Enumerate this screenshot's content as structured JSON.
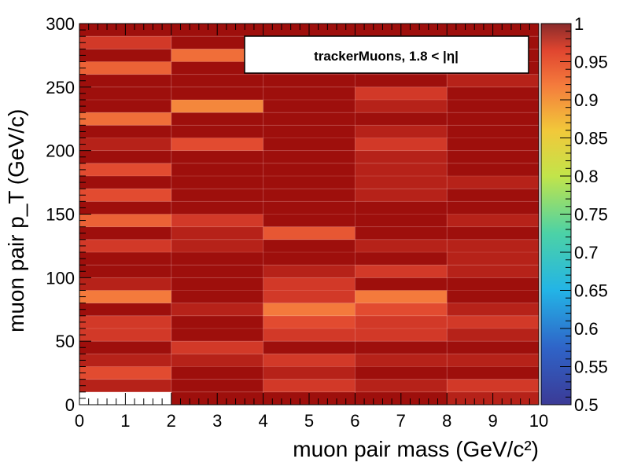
{
  "chart_data": {
    "type": "heatmap",
    "title": "",
    "legend_text": "trackerMuons, 1.8 < |η|",
    "xlabel": "muon pair mass (GeV/c²)",
    "ylabel": "muon pair p_T (GeV/c)",
    "xlim": [
      0,
      10
    ],
    "ylim": [
      0,
      300
    ],
    "zlim": [
      0.5,
      1
    ],
    "x_edges": [
      0,
      2,
      4,
      6,
      8,
      10
    ],
    "y_edges": [
      0,
      10,
      20,
      30,
      40,
      50,
      60,
      70,
      80,
      90,
      100,
      110,
      120,
      130,
      140,
      150,
      160,
      170,
      180,
      190,
      200,
      210,
      220,
      230,
      240,
      250,
      260,
      270,
      280,
      290,
      300
    ],
    "x_ticks": [
      "0",
      "1",
      "2",
      "3",
      "4",
      "5",
      "6",
      "7",
      "8",
      "9",
      "10"
    ],
    "y_ticks": [
      "0",
      "50",
      "100",
      "150",
      "200",
      "250",
      "300"
    ],
    "z_ticks": [
      "0.5",
      "0.55",
      "0.6",
      "0.65",
      "0.7",
      "0.75",
      "0.8",
      "0.85",
      "0.9",
      "0.95",
      "1"
    ],
    "values": [
      [
        null,
        0.99,
        0.99,
        0.99,
        0.98
      ],
      [
        0.98,
        0.99,
        0.97,
        0.98,
        0.97
      ],
      [
        0.96,
        0.99,
        0.98,
        0.99,
        0.99
      ],
      [
        0.98,
        0.98,
        0.97,
        0.98,
        0.98
      ],
      [
        0.99,
        0.97,
        0.99,
        0.99,
        0.99
      ],
      [
        0.97,
        0.99,
        0.97,
        0.97,
        0.98
      ],
      [
        0.97,
        0.99,
        0.96,
        0.97,
        0.97
      ],
      [
        0.99,
        0.98,
        0.92,
        0.96,
        0.98
      ],
      [
        0.92,
        0.99,
        0.97,
        0.92,
        0.99
      ],
      [
        0.98,
        0.99,
        0.97,
        0.99,
        0.99
      ],
      [
        0.99,
        0.99,
        0.98,
        0.97,
        0.98
      ],
      [
        0.99,
        0.99,
        0.99,
        0.99,
        0.98
      ],
      [
        0.97,
        0.98,
        0.99,
        0.98,
        0.98
      ],
      [
        0.99,
        0.98,
        0.95,
        0.99,
        0.99
      ],
      [
        0.94,
        0.97,
        0.99,
        0.99,
        0.98
      ],
      [
        0.99,
        0.99,
        0.99,
        0.99,
        0.99
      ],
      [
        0.96,
        0.99,
        0.99,
        0.98,
        0.99
      ],
      [
        0.99,
        0.99,
        0.99,
        0.98,
        0.98
      ],
      [
        0.96,
        0.99,
        0.99,
        0.98,
        0.99
      ],
      [
        0.99,
        0.99,
        0.99,
        0.98,
        0.99
      ],
      [
        0.98,
        0.96,
        0.99,
        0.97,
        0.99
      ],
      [
        0.99,
        0.99,
        0.99,
        0.98,
        0.99
      ],
      [
        0.93,
        0.99,
        0.99,
        0.99,
        0.99
      ],
      [
        0.99,
        0.91,
        0.99,
        0.98,
        0.99
      ],
      [
        0.99,
        0.99,
        0.99,
        0.97,
        0.99
      ],
      [
        0.99,
        0.99,
        0.99,
        0.99,
        0.98
      ],
      [
        0.94,
        0.99,
        0.99,
        0.99,
        0.99
      ],
      [
        0.99,
        0.93,
        0.99,
        0.99,
        0.99
      ],
      [
        0.97,
        0.99,
        0.99,
        0.99,
        0.99
      ],
      [
        0.99,
        0.99,
        0.99,
        0.99,
        0.99
      ]
    ]
  }
}
